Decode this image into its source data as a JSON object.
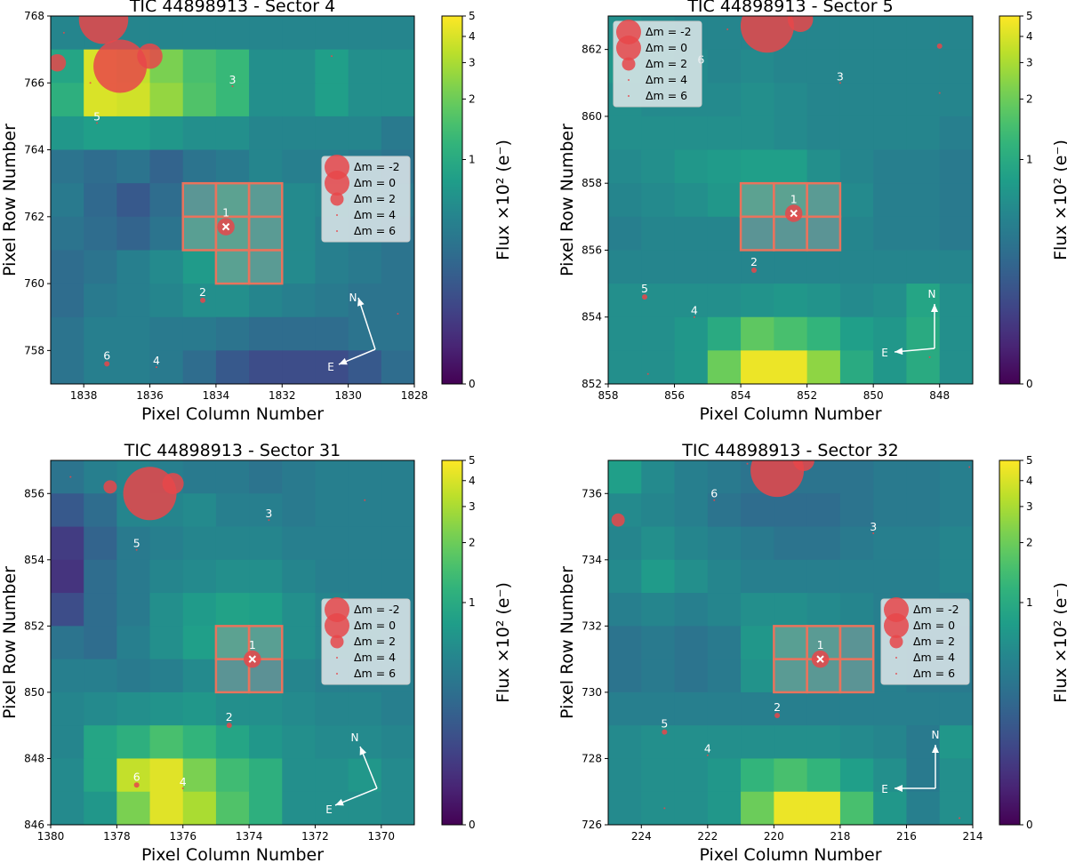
{
  "chart_data": [
    {
      "type": "heatmap",
      "title": "TIC 44898913 - Sector 4",
      "xlabel": "Pixel Column Number",
      "ylabel": "Pixel Row Number",
      "xlim": [
        1839,
        1828
      ],
      "ylim": [
        757,
        768
      ],
      "x_ticks": [
        1838,
        1836,
        1834,
        1832,
        1830,
        1828
      ],
      "y_ticks": [
        758,
        760,
        762,
        764,
        766,
        768
      ],
      "colorbar": {
        "label": "Flux ×10² (e⁻)",
        "ticks": [
          0,
          1,
          2,
          3,
          4,
          5
        ],
        "colormap": "viridis",
        "scale": "log"
      },
      "flux": [
        [
          0.5,
          0.5,
          0.5,
          0.5,
          0.5,
          0.5,
          0.5,
          0.5,
          0.5,
          0.5,
          0.5
        ],
        [
          0.9,
          4.0,
          3.5,
          2.2,
          1.5,
          1.3,
          0.6,
          0.6,
          0.8,
          0.6,
          0.6
        ],
        [
          1.1,
          4.0,
          3.8,
          2.6,
          1.6,
          1.3,
          0.6,
          0.6,
          0.8,
          0.6,
          0.6
        ],
        [
          0.7,
          0.8,
          0.8,
          0.7,
          0.6,
          0.6,
          0.5,
          0.5,
          0.5,
          0.5,
          0.4
        ],
        [
          0.35,
          0.3,
          0.35,
          0.25,
          0.35,
          0.4,
          0.5,
          0.45,
          0.45,
          0.4,
          0.35
        ],
        [
          0.4,
          0.28,
          0.2,
          0.3,
          0.6,
          0.9,
          0.7,
          0.55,
          0.5,
          0.45,
          0.4
        ],
        [
          0.35,
          0.3,
          0.25,
          0.35,
          0.8,
          0.9,
          0.7,
          0.55,
          0.45,
          0.4,
          0.35
        ],
        [
          0.3,
          0.35,
          0.45,
          0.55,
          0.75,
          0.85,
          0.7,
          0.55,
          0.45,
          0.4,
          0.35
        ],
        [
          0.3,
          0.4,
          0.45,
          0.5,
          0.6,
          0.6,
          0.5,
          0.45,
          0.4,
          0.35,
          0.35
        ],
        [
          0.35,
          0.45,
          0.45,
          0.4,
          0.4,
          0.35,
          0.3,
          0.3,
          0.3,
          0.35,
          0.35
        ],
        [
          0.35,
          0.45,
          0.45,
          0.4,
          0.3,
          0.2,
          0.15,
          0.15,
          0.15,
          0.2,
          0.3
        ]
      ],
      "aperture": [
        [
          1834.5,
          762.5
        ],
        [
          1833.5,
          762.5
        ],
        [
          1832.5,
          762.5
        ],
        [
          1834.5,
          761.5
        ],
        [
          1833.5,
          761.5
        ],
        [
          1832.5,
          761.5
        ],
        [
          1833.5,
          760.5
        ],
        [
          1832.5,
          760.5
        ]
      ],
      "stars": [
        {
          "label": "",
          "x": 1836.9,
          "y": 766.5,
          "dm": -3
        },
        {
          "label": "",
          "x": 1837.4,
          "y": 767.9,
          "dm": -2.5
        },
        {
          "label": "",
          "x": 1836.0,
          "y": 766.8,
          "dm": 0.5
        },
        {
          "label": "",
          "x": 1838.8,
          "y": 766.6,
          "dm": 1.5
        },
        {
          "label": "",
          "x": 1838.6,
          "y": 767.5,
          "dm": 5
        },
        {
          "label": "",
          "x": 1837.8,
          "y": 766.0,
          "dm": 5
        },
        {
          "label": "",
          "x": 1830.5,
          "y": 766.8,
          "dm": 5
        },
        {
          "label": "3",
          "x": 1833.5,
          "y": 765.9,
          "dm": 4
        },
        {
          "label": "5",
          "x": 1837.6,
          "y": 764.8,
          "dm": 5
        },
        {
          "label": "1",
          "x": 1833.7,
          "y": 761.7,
          "dm": 1.5,
          "target": true
        },
        {
          "label": "2",
          "x": 1834.4,
          "y": 759.5,
          "dm": 3
        },
        {
          "label": "6",
          "x": 1837.3,
          "y": 757.6,
          "dm": 3
        },
        {
          "label": "4",
          "x": 1835.8,
          "y": 757.5,
          "dm": 4.5
        },
        {
          "label": "",
          "x": 1828.5,
          "y": 759.1,
          "dm": 6
        }
      ],
      "compass": {
        "N": "N",
        "E": "E"
      },
      "legend": {
        "labels": [
          "Δm = -2",
          "Δm = 0",
          "Δm = 2",
          "Δm = 4",
          "Δm = 6"
        ],
        "location": "center-right"
      }
    },
    {
      "type": "heatmap",
      "title": "TIC 44898913 - Sector 5",
      "xlabel": "Pixel Column Number",
      "ylabel": "Pixel Row Number",
      "xlim": [
        858,
        847
      ],
      "ylim": [
        852,
        863
      ],
      "x_ticks": [
        858,
        856,
        854,
        852,
        850,
        848
      ],
      "y_ticks": [
        852,
        854,
        856,
        858,
        860,
        862
      ],
      "colorbar": {
        "label": "Flux ×10² (e⁻)",
        "ticks": [
          0,
          1,
          2,
          3,
          4,
          5
        ],
        "colormap": "viridis",
        "scale": "log"
      },
      "flux": [
        [
          0.6,
          0.55,
          0.5,
          0.5,
          0.5,
          0.5,
          0.5,
          0.5,
          0.5,
          0.5,
          0.5
        ],
        [
          0.7,
          0.6,
          0.55,
          0.5,
          0.55,
          0.5,
          0.5,
          0.5,
          0.5,
          0.5,
          0.5
        ],
        [
          0.6,
          0.55,
          0.55,
          0.55,
          0.6,
          0.55,
          0.5,
          0.5,
          0.5,
          0.5,
          0.5
        ],
        [
          0.6,
          0.6,
          0.6,
          0.6,
          0.6,
          0.55,
          0.5,
          0.5,
          0.5,
          0.5,
          0.45
        ],
        [
          0.55,
          0.6,
          0.7,
          0.75,
          0.8,
          0.8,
          0.6,
          0.5,
          0.45,
          0.45,
          0.4
        ],
        [
          0.5,
          0.55,
          0.6,
          0.7,
          0.9,
          0.9,
          0.7,
          0.55,
          0.45,
          0.45,
          0.4
        ],
        [
          0.45,
          0.5,
          0.5,
          0.5,
          0.55,
          0.6,
          0.55,
          0.5,
          0.45,
          0.45,
          0.4
        ],
        [
          0.5,
          0.5,
          0.5,
          0.5,
          0.5,
          0.5,
          0.5,
          0.5,
          0.5,
          0.5,
          0.5
        ],
        [
          0.6,
          0.6,
          0.6,
          0.6,
          0.65,
          0.7,
          0.65,
          0.55,
          0.6,
          0.9,
          0.6
        ],
        [
          0.6,
          0.6,
          0.7,
          1.0,
          1.8,
          1.5,
          1.2,
          0.8,
          0.7,
          1.0,
          0.6
        ],
        [
          0.6,
          0.6,
          0.7,
          2.0,
          4.5,
          4.5,
          2.5,
          1.0,
          0.7,
          1.0,
          0.6
        ]
      ],
      "aperture": [
        [
          853.5,
          857.5
        ],
        [
          852.5,
          857.5
        ],
        [
          851.5,
          857.5
        ],
        [
          853.5,
          856.5
        ],
        [
          852.5,
          856.5
        ],
        [
          851.5,
          856.5
        ]
      ],
      "stars": [
        {
          "label": "",
          "x": 853.2,
          "y": 862.7,
          "dm": -3
        },
        {
          "label": "",
          "x": 852.2,
          "y": 862.9,
          "dm": 0.5
        },
        {
          "label": "",
          "x": 848.0,
          "y": 862.1,
          "dm": 3
        },
        {
          "label": "",
          "x": 854.4,
          "y": 862.6,
          "dm": 5
        },
        {
          "label": "6",
          "x": 855.2,
          "y": 861.5,
          "dm": 5
        },
        {
          "label": "3",
          "x": 851.0,
          "y": 861.0,
          "dm": 4
        },
        {
          "label": "",
          "x": 848.0,
          "y": 860.7,
          "dm": 5
        },
        {
          "label": "1",
          "x": 852.4,
          "y": 857.1,
          "dm": 1.5,
          "target": true
        },
        {
          "label": "2",
          "x": 853.6,
          "y": 855.4,
          "dm": 3
        },
        {
          "label": "5",
          "x": 856.9,
          "y": 854.6,
          "dm": 3
        },
        {
          "label": "4",
          "x": 855.4,
          "y": 854.0,
          "dm": 4.5
        },
        {
          "label": "",
          "x": 856.8,
          "y": 852.3,
          "dm": 6
        },
        {
          "label": "",
          "x": 848.3,
          "y": 852.8,
          "dm": 6
        }
      ],
      "compass": {
        "N": "N",
        "E": "E"
      },
      "legend": {
        "labels": [
          "Δm = -2",
          "Δm = 0",
          "Δm = 2",
          "Δm = 4",
          "Δm = 6"
        ],
        "location": "top-left"
      }
    },
    {
      "type": "heatmap",
      "title": "TIC 44898913 - Sector 31",
      "xlabel": "Pixel Column Number",
      "ylabel": "Pixel Row Number",
      "xlim": [
        1380,
        1369
      ],
      "ylim": [
        846,
        857
      ],
      "x_ticks": [
        1380,
        1378,
        1376,
        1374,
        1372,
        1370
      ],
      "y_ticks": [
        846,
        848,
        850,
        852,
        854,
        856
      ],
      "colorbar": {
        "label": "Flux ×10² (e⁻)",
        "ticks": [
          0,
          1,
          2,
          3,
          4,
          5
        ],
        "colormap": "viridis",
        "scale": "log"
      },
      "flux": [
        [
          0.35,
          0.45,
          0.5,
          0.45,
          0.4,
          0.4,
          0.35,
          0.4,
          0.45,
          0.45,
          0.45
        ],
        [
          0.2,
          0.3,
          0.5,
          0.5,
          0.55,
          0.45,
          0.45,
          0.4,
          0.45,
          0.45,
          0.45
        ],
        [
          0.1,
          0.25,
          0.4,
          0.45,
          0.5,
          0.5,
          0.5,
          0.45,
          0.45,
          0.45,
          0.45
        ],
        [
          0.08,
          0.3,
          0.4,
          0.5,
          0.55,
          0.6,
          0.6,
          0.5,
          0.45,
          0.45,
          0.45
        ],
        [
          0.15,
          0.3,
          0.4,
          0.6,
          0.75,
          0.85,
          0.8,
          0.6,
          0.5,
          0.45,
          0.45
        ],
        [
          0.35,
          0.3,
          0.45,
          0.6,
          0.8,
          0.9,
          0.8,
          0.6,
          0.5,
          0.5,
          0.45
        ],
        [
          0.45,
          0.45,
          0.4,
          0.45,
          0.55,
          0.55,
          0.5,
          0.5,
          0.45,
          0.45,
          0.45
        ],
        [
          0.5,
          0.55,
          0.6,
          0.65,
          0.7,
          0.6,
          0.6,
          0.55,
          0.5,
          0.5,
          0.45
        ],
        [
          0.5,
          0.9,
          1.1,
          1.5,
          1.2,
          0.9,
          0.7,
          0.6,
          0.55,
          0.55,
          0.5
        ],
        [
          0.55,
          0.9,
          3.5,
          4.2,
          2.2,
          1.4,
          1.1,
          0.6,
          0.6,
          0.7,
          0.55
        ],
        [
          0.55,
          0.7,
          2.2,
          4.2,
          3.0,
          1.6,
          1.1,
          0.6,
          0.6,
          0.6,
          0.55
        ]
      ],
      "aperture": [
        [
          1374.5,
          851.5
        ],
        [
          1373.5,
          851.5
        ],
        [
          1374.5,
          850.5
        ],
        [
          1373.5,
          850.5
        ]
      ],
      "stars": [
        {
          "label": "",
          "x": 1377.0,
          "y": 856.0,
          "dm": -3
        },
        {
          "label": "",
          "x": 1376.3,
          "y": 856.3,
          "dm": 1
        },
        {
          "label": "",
          "x": 1378.2,
          "y": 856.2,
          "dm": 2
        },
        {
          "label": "",
          "x": 1379.4,
          "y": 856.5,
          "dm": 5
        },
        {
          "label": "",
          "x": 1377.6,
          "y": 855.5,
          "dm": 5
        },
        {
          "label": "",
          "x": 1370.5,
          "y": 855.8,
          "dm": 5
        },
        {
          "label": "3",
          "x": 1373.4,
          "y": 855.2,
          "dm": 4
        },
        {
          "label": "5",
          "x": 1377.4,
          "y": 854.3,
          "dm": 5
        },
        {
          "label": "1",
          "x": 1373.9,
          "y": 851.0,
          "dm": 1.5,
          "target": true
        },
        {
          "label": "2",
          "x": 1374.6,
          "y": 849.0,
          "dm": 3
        },
        {
          "label": "6",
          "x": 1377.4,
          "y": 847.2,
          "dm": 3
        },
        {
          "label": "4",
          "x": 1376.0,
          "y": 847.1,
          "dm": 4.5
        }
      ],
      "compass": {
        "N": "N",
        "E": "E"
      },
      "legend": {
        "labels": [
          "Δm = -2",
          "Δm = 0",
          "Δm = 2",
          "Δm = 4",
          "Δm = 6"
        ],
        "location": "center-right"
      }
    },
    {
      "type": "heatmap",
      "title": "TIC 44898913 - Sector 32",
      "xlabel": "Pixel Column Number",
      "ylabel": "Pixel Row Number",
      "xlim": [
        225,
        214
      ],
      "ylim": [
        726,
        737
      ],
      "x_ticks": [
        224,
        222,
        220,
        218,
        216,
        214
      ],
      "y_ticks": [
        726,
        728,
        730,
        732,
        734,
        736
      ],
      "colorbar": {
        "label": "Flux ×10² (e⁻)",
        "ticks": [
          0,
          1,
          2,
          3,
          4,
          5
        ],
        "colormap": "viridis",
        "scale": "log"
      },
      "flux": [
        [
          0.8,
          0.55,
          0.45,
          0.4,
          0.35,
          0.35,
          0.35,
          0.35,
          0.4,
          0.4,
          0.45
        ],
        [
          0.55,
          0.5,
          0.45,
          0.35,
          0.3,
          0.3,
          0.3,
          0.35,
          0.4,
          0.4,
          0.45
        ],
        [
          0.5,
          0.6,
          0.5,
          0.45,
          0.4,
          0.35,
          0.35,
          0.4,
          0.45,
          0.45,
          0.5
        ],
        [
          0.55,
          0.75,
          0.6,
          0.5,
          0.45,
          0.45,
          0.45,
          0.45,
          0.45,
          0.45,
          0.5
        ],
        [
          0.45,
          0.5,
          0.45,
          0.5,
          0.6,
          0.6,
          0.55,
          0.5,
          0.45,
          0.45,
          0.45
        ],
        [
          0.35,
          0.4,
          0.35,
          0.4,
          0.7,
          0.8,
          0.7,
          0.55,
          0.45,
          0.4,
          0.4
        ],
        [
          0.35,
          0.4,
          0.35,
          0.4,
          0.65,
          0.7,
          0.65,
          0.55,
          0.45,
          0.4,
          0.4
        ],
        [
          0.45,
          0.45,
          0.45,
          0.45,
          0.45,
          0.45,
          0.45,
          0.45,
          0.45,
          0.45,
          0.45
        ],
        [
          0.55,
          0.6,
          0.6,
          0.6,
          0.6,
          0.6,
          0.6,
          0.55,
          0.5,
          0.4,
          0.7
        ],
        [
          0.55,
          0.6,
          0.6,
          0.7,
          1.2,
          1.5,
          1.2,
          0.8,
          0.6,
          0.4,
          0.6
        ],
        [
          0.55,
          0.6,
          0.6,
          0.7,
          2.0,
          4.5,
          4.5,
          1.5,
          0.7,
          0.45,
          0.6
        ]
      ],
      "aperture": [
        [
          219.5,
          731.5
        ],
        [
          218.5,
          731.5
        ],
        [
          217.5,
          731.5
        ],
        [
          219.5,
          730.5
        ],
        [
          218.5,
          730.5
        ],
        [
          217.5,
          730.5
        ]
      ],
      "stars": [
        {
          "label": "",
          "x": 219.9,
          "y": 736.7,
          "dm": -3
        },
        {
          "label": "",
          "x": 219.1,
          "y": 737.0,
          "dm": 1
        },
        {
          "label": "",
          "x": 224.7,
          "y": 735.2,
          "dm": 2
        },
        {
          "label": "",
          "x": 220.8,
          "y": 736.9,
          "dm": 5
        },
        {
          "label": "",
          "x": 214.1,
          "y": 736.8,
          "dm": 4
        },
        {
          "label": "6",
          "x": 221.8,
          "y": 735.8,
          "dm": 5
        },
        {
          "label": "3",
          "x": 217.0,
          "y": 734.8,
          "dm": 4
        },
        {
          "label": "1",
          "x": 218.6,
          "y": 731.0,
          "dm": 1.5,
          "target": true
        },
        {
          "label": "2",
          "x": 219.9,
          "y": 729.3,
          "dm": 3
        },
        {
          "label": "5",
          "x": 223.3,
          "y": 728.8,
          "dm": 3
        },
        {
          "label": "4",
          "x": 222.0,
          "y": 728.1,
          "dm": 4.5
        },
        {
          "label": "",
          "x": 223.3,
          "y": 726.5,
          "dm": 6
        },
        {
          "label": "",
          "x": 214.4,
          "y": 726.2,
          "dm": 6
        }
      ],
      "compass": {
        "N": "N",
        "E": "E"
      },
      "legend": {
        "labels": [
          "Δm = -2",
          "Δm = 0",
          "Δm = 2",
          "Δm = 4",
          "Δm = 6"
        ],
        "location": "center-right"
      }
    }
  ],
  "colors": {
    "star": "#e8474a",
    "aperture": "#e9735c",
    "compass": "#ffffff",
    "legend_bg": "#e7ecee"
  }
}
